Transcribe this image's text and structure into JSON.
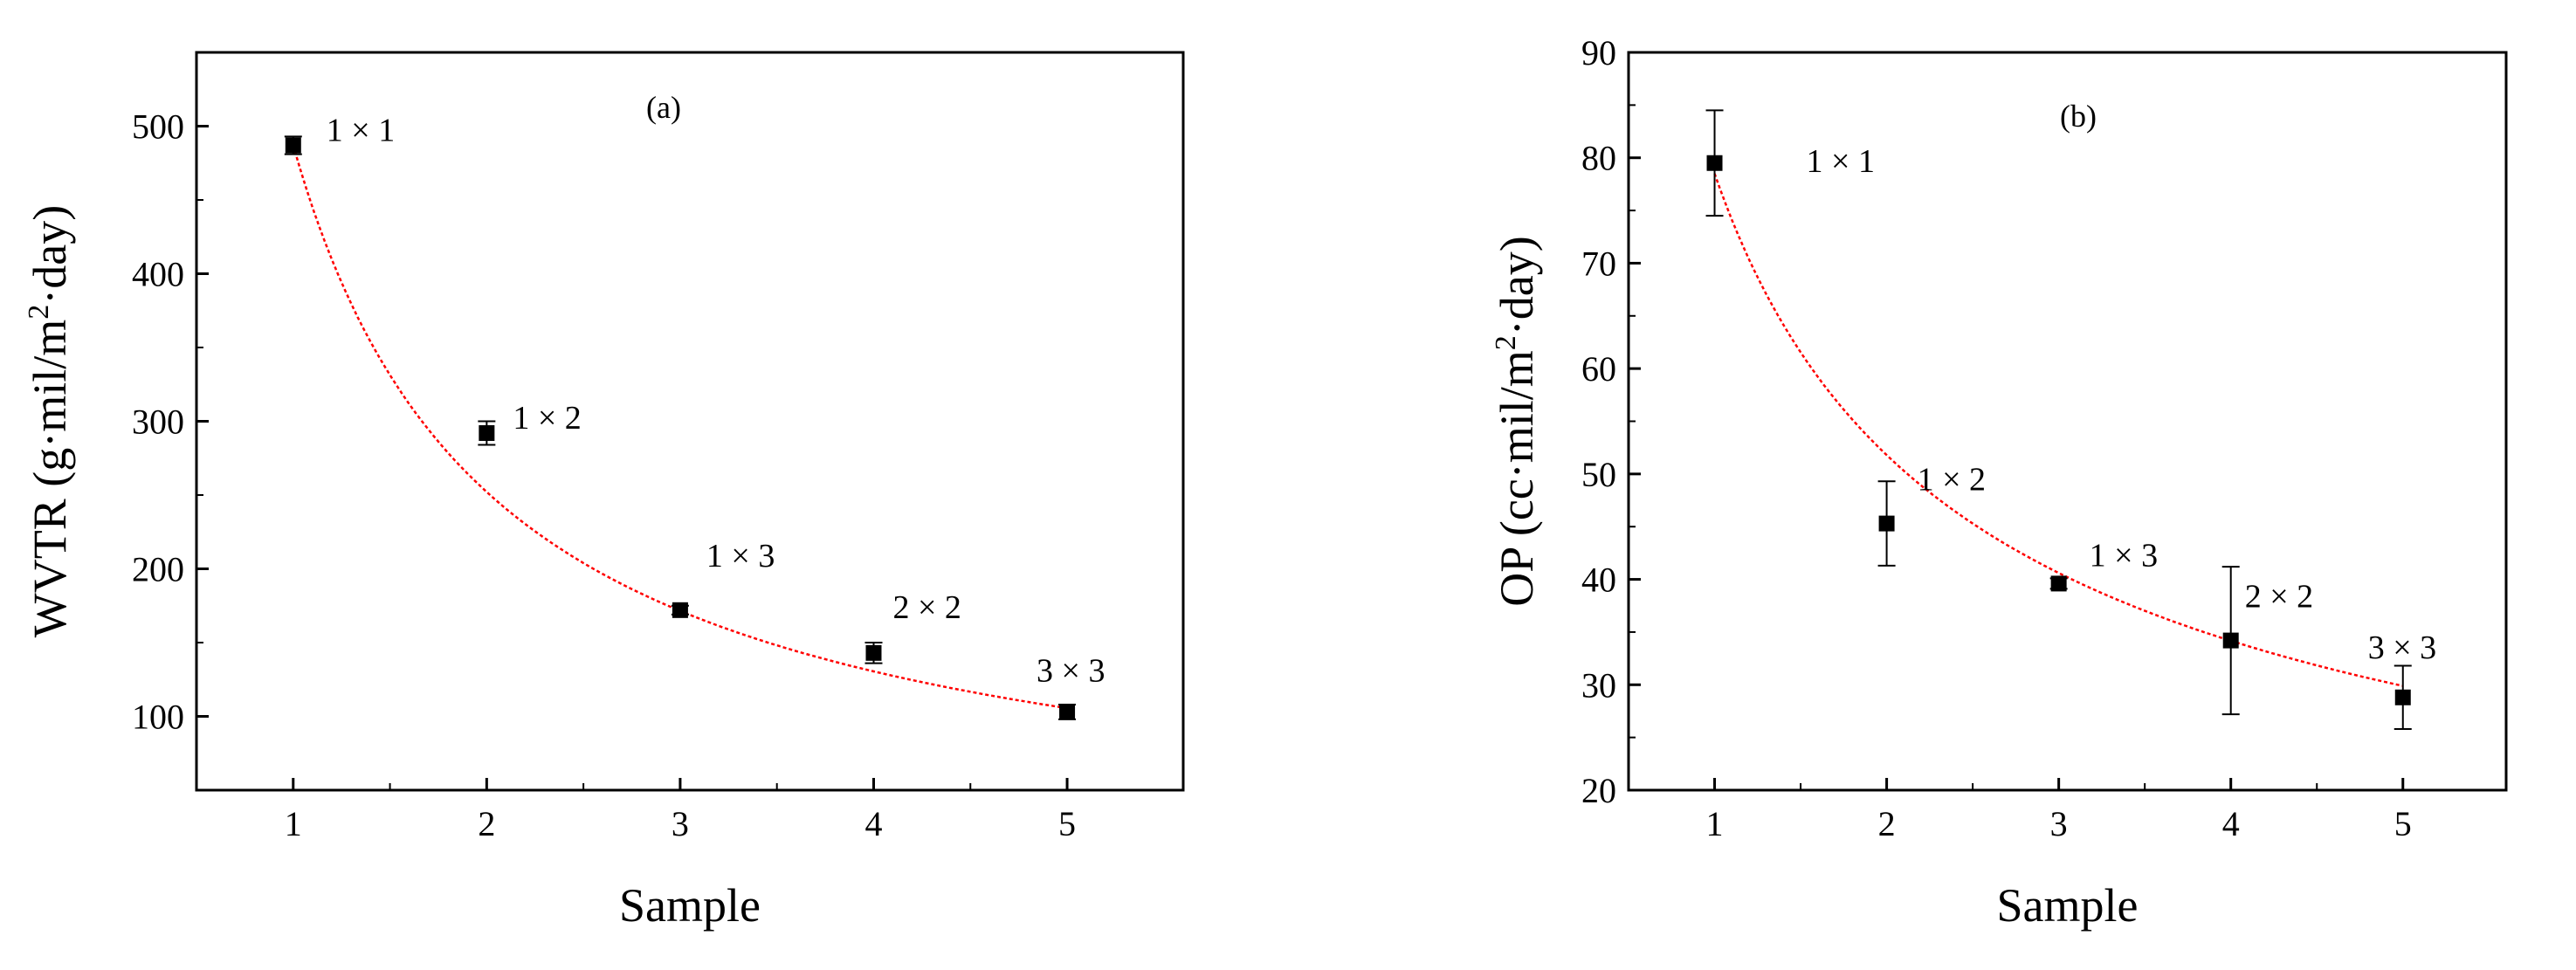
{
  "chart_data": [
    {
      "type": "scatter",
      "panel_label": "(a)",
      "xlabel": "Sample",
      "ylabel_main": "WVTR (g·mil/m",
      "ylabel_sup": "2",
      "ylabel_tail": "·day)",
      "xlim": [
        0.5,
        5.6
      ],
      "ylim": [
        50,
        550
      ],
      "xticks": [
        1,
        2,
        3,
        4,
        5
      ],
      "yticks": [
        100,
        200,
        300,
        400,
        500
      ],
      "points": [
        {
          "x": 1,
          "y": 487,
          "err": 6,
          "label": "1 × 1"
        },
        {
          "x": 2,
          "y": 292,
          "err": 8,
          "label": "1 × 2"
        },
        {
          "x": 3,
          "y": 172,
          "err": 3,
          "label": "1 × 3"
        },
        {
          "x": 4,
          "y": 143,
          "err": 7,
          "label": "2 × 2"
        },
        {
          "x": 5,
          "y": 103,
          "err": 5,
          "label": "3 × 3"
        }
      ],
      "fit": {
        "type": "power",
        "a": 487,
        "b": -0.95,
        "color": "#ff0000"
      }
    },
    {
      "type": "scatter",
      "panel_label": "(b)",
      "xlabel": "Sample",
      "ylabel_main": "OP (cc·mil/m",
      "ylabel_sup": "2",
      "ylabel_tail": "·day)",
      "xlim": [
        0.5,
        5.6
      ],
      "ylim": [
        20,
        90
      ],
      "xticks": [
        1,
        2,
        3,
        4,
        5
      ],
      "yticks": [
        20,
        30,
        40,
        50,
        60,
        70,
        80,
        90
      ],
      "points": [
        {
          "x": 1,
          "y": 79.5,
          "err": 5,
          "label": "1 × 1"
        },
        {
          "x": 2,
          "y": 45.3,
          "err": 4,
          "label": "1 × 2"
        },
        {
          "x": 3,
          "y": 39.6,
          "err": 0.5,
          "label": "1 × 3"
        },
        {
          "x": 4,
          "y": 34.2,
          "err": 7,
          "label": "2 × 2"
        },
        {
          "x": 5,
          "y": 28.8,
          "err": 3,
          "label": "3 × 3"
        }
      ],
      "fit": {
        "type": "power",
        "a": 78.5,
        "b": -0.6,
        "color": "#ff0000"
      }
    }
  ]
}
